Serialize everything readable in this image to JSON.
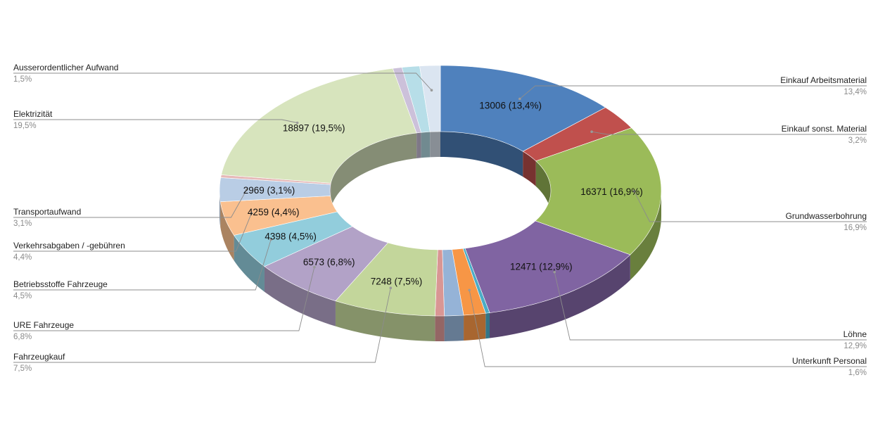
{
  "chart_data": {
    "type": "pie",
    "style": "3d-donut",
    "title": "",
    "legend": "none",
    "slices": [
      {
        "label": "Einkauf Arbeitsmaterial",
        "value": 13006,
        "percent": "13,4%",
        "data_label": "13006 (13,4%)",
        "color": "#4f81bd"
      },
      {
        "label": "Einkauf sonst. Material",
        "value": 3105,
        "percent": "3,2%",
        "data_label": "",
        "color": "#c0504d"
      },
      {
        "label": "Grundwasserbohrung",
        "value": 16371,
        "percent": "16,9%",
        "data_label": "16371 (16,9%)",
        "color": "#9bbb59"
      },
      {
        "label": "Löhne",
        "value": 12471,
        "percent": "12,9%",
        "data_label": "12471 (12,9%)",
        "color": "#8064a2"
      },
      {
        "label": "",
        "value": 290,
        "percent": "",
        "data_label": "",
        "color": "#4bacc6"
      },
      {
        "label": "Unterkunft Personal",
        "value": 1550,
        "percent": "1,6%",
        "data_label": "",
        "color": "#f79646"
      },
      {
        "label": "",
        "value": 1350,
        "percent": "",
        "data_label": "",
        "color": "#95b3d7"
      },
      {
        "label": "",
        "value": 650,
        "percent": "",
        "data_label": "",
        "color": "#d99694"
      },
      {
        "label": "Fahrzeugkauf",
        "value": 7248,
        "percent": "7,5%",
        "data_label": "7248 (7,5%)",
        "color": "#c3d69b"
      },
      {
        "label": "URE Fahrzeuge",
        "value": 6573,
        "percent": "6,8%",
        "data_label": "6573 (6,8%)",
        "color": "#b2a2c7"
      },
      {
        "label": "Betriebsstoffe Fahrzeuge",
        "value": 4398,
        "percent": "4,5%",
        "data_label": "4398 (4,5%)",
        "color": "#92cddc"
      },
      {
        "label": "Verkehrsabgaben / -gebühren",
        "value": 4259,
        "percent": "4,4%",
        "data_label": "4259 (4,4%)",
        "color": "#fac08f"
      },
      {
        "label": "Transportaufwand",
        "value": 2969,
        "percent": "3,1%",
        "data_label": "2969 (3,1%)",
        "color": "#b9cde5"
      },
      {
        "label": "",
        "value": 350,
        "percent": "",
        "data_label": "",
        "color": "#e6b9b8"
      },
      {
        "label": "Elektrizität",
        "value": 18897,
        "percent": "19,5%",
        "data_label": "18897 (19,5%)",
        "color": "#d7e4bd"
      },
      {
        "label": "",
        "value": 650,
        "percent": "",
        "data_label": "",
        "color": "#ccc1da"
      },
      {
        "label": "",
        "value": 1250,
        "percent": "",
        "data_label": "",
        "color": "#b7dee8"
      },
      {
        "label": "Ausserordentlicher Aufwand",
        "value": 1450,
        "percent": "1,5%",
        "data_label": "",
        "color": "#dbe5f1"
      }
    ]
  }
}
